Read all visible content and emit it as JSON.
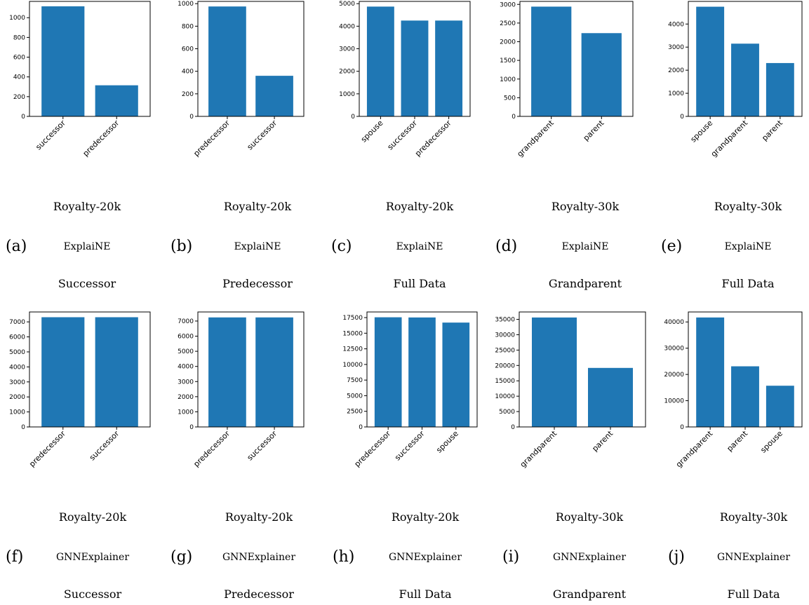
{
  "bar_color": "#1f77b4",
  "panels": [
    {
      "letter": "(a)",
      "dataset": "Royalty-20k",
      "method": "ExplaiNE",
      "target": "Successor"
    },
    {
      "letter": "(b)",
      "dataset": "Royalty-20k",
      "method": "ExplaiNE",
      "target": "Predecessor"
    },
    {
      "letter": "(c)",
      "dataset": "Royalty-20k",
      "method": "ExplaiNE",
      "target": "Full Data"
    },
    {
      "letter": "(d)",
      "dataset": "Royalty-30k",
      "method": "ExplaiNE",
      "target": "Grandparent"
    },
    {
      "letter": "(e)",
      "dataset": "Royalty-30k",
      "method": "ExplaiNE",
      "target": "Full Data"
    },
    {
      "letter": "(f)",
      "dataset": "Royalty-20k",
      "method": "GNNExplainer",
      "target": "Successor"
    },
    {
      "letter": "(g)",
      "dataset": "Royalty-20k",
      "method": "GNNExplainer",
      "target": "Predecessor"
    },
    {
      "letter": "(h)",
      "dataset": "Royalty-20k",
      "method": "GNNExplainer",
      "target": "Full Data"
    },
    {
      "letter": "(i)",
      "dataset": "Royalty-30k",
      "method": "GNNExplainer",
      "target": "Grandparent"
    },
    {
      "letter": "(j)",
      "dataset": "Royalty-30k",
      "method": "GNNExplainer",
      "target": "Full Data"
    }
  ],
  "chart_data": [
    {
      "type": "bar",
      "categories": [
        "successor",
        "predecessor"
      ],
      "values": [
        1115,
        315
      ],
      "ylim": [
        0,
        1165
      ],
      "yticks": [
        0,
        200,
        400,
        600,
        800,
        1000
      ],
      "grid": false
    },
    {
      "type": "bar",
      "categories": [
        "predecessor",
        "successor"
      ],
      "values": [
        975,
        360
      ],
      "ylim": [
        0,
        1020
      ],
      "yticks": [
        0,
        200,
        400,
        600,
        800,
        1000
      ],
      "grid": false
    },
    {
      "type": "bar",
      "categories": [
        "spouse",
        "successor",
        "predecessor"
      ],
      "values": [
        4870,
        4250,
        4250
      ],
      "ylim": [
        0,
        5100
      ],
      "yticks": [
        0,
        1000,
        2000,
        3000,
        4000,
        5000
      ],
      "grid": false
    },
    {
      "type": "bar",
      "categories": [
        "grandparent",
        "parent"
      ],
      "values": [
        2940,
        2230
      ],
      "ylim": [
        0,
        3080
      ],
      "yticks": [
        0,
        500,
        1000,
        1500,
        2000,
        2500,
        3000
      ],
      "grid": false
    },
    {
      "type": "bar",
      "categories": [
        "spouse",
        "grandparent",
        "parent"
      ],
      "values": [
        4750,
        3150,
        2310
      ],
      "ylim": [
        0,
        4980
      ],
      "yticks": [
        0,
        1000,
        2000,
        3000,
        4000
      ],
      "grid": false
    },
    {
      "type": "bar",
      "categories": [
        "predecessor",
        "successor"
      ],
      "values": [
        7310,
        7310
      ],
      "ylim": [
        0,
        7660
      ],
      "yticks": [
        0,
        1000,
        2000,
        3000,
        4000,
        5000,
        6000,
        7000
      ],
      "grid": false
    },
    {
      "type": "bar",
      "categories": [
        "predecessor",
        "successor"
      ],
      "values": [
        7240,
        7240
      ],
      "ylim": [
        0,
        7600
      ],
      "yticks": [
        0,
        1000,
        2000,
        3000,
        4000,
        5000,
        6000,
        7000
      ],
      "grid": false
    },
    {
      "type": "bar",
      "categories": [
        "predecessor",
        "successor",
        "spouse"
      ],
      "values": [
        17550,
        17520,
        16700
      ],
      "ylim": [
        0,
        18400
      ],
      "yticks": [
        0,
        2500,
        5000,
        7500,
        10000,
        12500,
        15000,
        17500
      ],
      "grid": false
    },
    {
      "type": "bar",
      "categories": [
        "grandparent",
        "parent"
      ],
      "values": [
        35600,
        19200
      ],
      "ylim": [
        0,
        37400
      ],
      "yticks": [
        0,
        5000,
        10000,
        15000,
        20000,
        25000,
        30000,
        35000
      ],
      "grid": false
    },
    {
      "type": "bar",
      "categories": [
        "grandparent",
        "parent",
        "spouse"
      ],
      "values": [
        41700,
        23100,
        15700
      ],
      "ylim": [
        0,
        43800
      ],
      "yticks": [
        0,
        10000,
        20000,
        30000,
        40000
      ],
      "grid": false
    }
  ]
}
